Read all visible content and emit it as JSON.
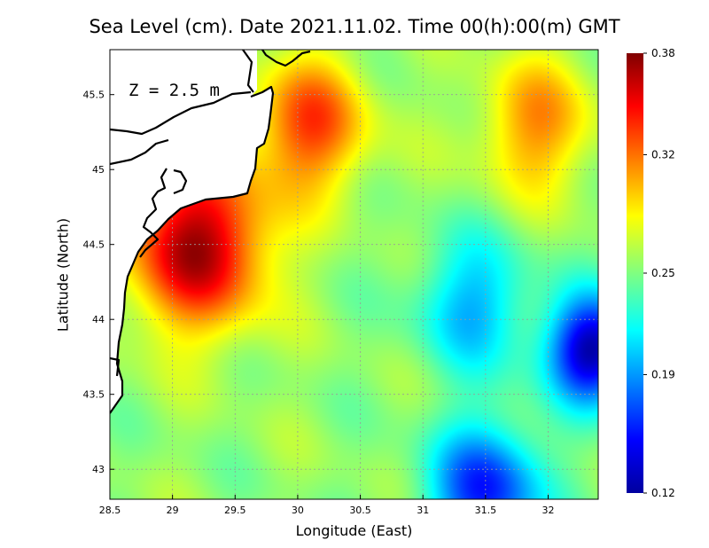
{
  "title": "Sea Level (cm). Date 2021.11.02. Time 00(h):00(m) GMT",
  "depth_label": "Z = 2.5 m",
  "x_axis": {
    "label": "Longitude (East)",
    "min": 28.5,
    "max": 32.4,
    "ticks": [
      28.5,
      29,
      29.5,
      30,
      30.5,
      31,
      31.5,
      32
    ],
    "tick_labels": [
      "28.5",
      "29",
      "29.5",
      "30",
      "30.5",
      "31",
      "31.5",
      "32"
    ]
  },
  "y_axis": {
    "label": "Latitude (North)",
    "min": 42.8,
    "max": 45.8,
    "ticks": [
      43,
      43.5,
      44,
      44.5,
      45,
      45.5
    ],
    "tick_labels": [
      "43",
      "43.5",
      "44",
      "44.5",
      "45",
      "45.5"
    ]
  },
  "colorbar": {
    "min": 0.12,
    "max": 0.38,
    "tick_values": [
      0.38,
      0.32,
      0.25,
      0.19,
      0.12
    ],
    "tick_labels": [
      "0.38",
      "0.32",
      "0.25",
      "0.19",
      "0.12"
    ]
  },
  "chart_data": {
    "type": "heatmap",
    "title": "Sea Level (cm). Date 2021.11.02. Time 00(h):00(m) GMT",
    "xlabel": "Longitude (East)",
    "ylabel": "Latitude (North)",
    "xlim": [
      28.5,
      32.4
    ],
    "ylim": [
      42.8,
      45.8
    ],
    "value_range": [
      0.12,
      0.38
    ],
    "grid": true,
    "colormap": "jet",
    "field_features": [
      {
        "name": "coastal-maximum",
        "lon": 29.2,
        "lat": 44.5,
        "value": 0.37
      },
      {
        "name": "northern-shelf",
        "lon": 30.1,
        "lat": 45.3,
        "value": 0.33
      },
      {
        "name": "northeast-high",
        "lon": 31.9,
        "lat": 45.3,
        "value": 0.31
      },
      {
        "name": "central-minimum",
        "lon": 31.4,
        "lat": 44.1,
        "value": 0.2
      },
      {
        "name": "eastern-minimum",
        "lon": 32.35,
        "lat": 43.8,
        "value": 0.13
      },
      {
        "name": "southern-minimum",
        "lon": 31.5,
        "lat": 42.85,
        "value": 0.16
      }
    ]
  }
}
